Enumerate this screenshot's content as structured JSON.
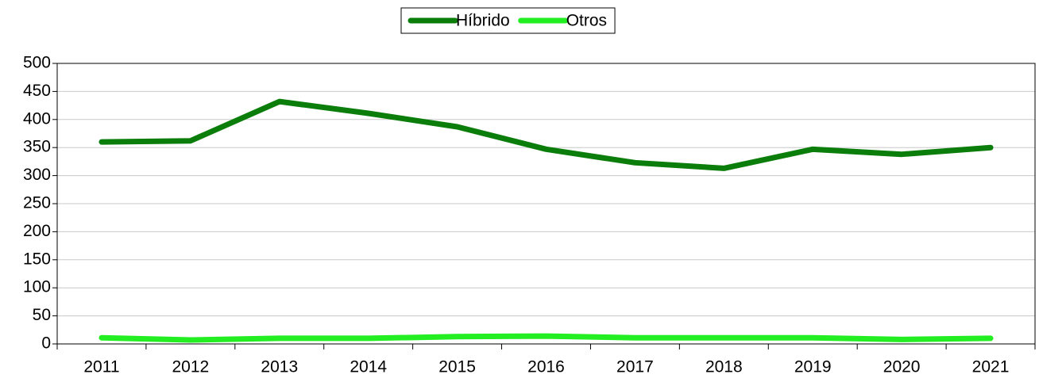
{
  "chart_data": {
    "type": "line",
    "categories": [
      "2011",
      "2012",
      "2013",
      "2014",
      "2015",
      "2016",
      "2017",
      "2018",
      "2019",
      "2020",
      "2021"
    ],
    "series": [
      {
        "name": "Híbrido",
        "color": "#0a7d0a",
        "values": [
          360,
          362,
          432,
          411,
          387,
          347,
          323,
          313,
          347,
          338,
          350
        ]
      },
      {
        "name": "Otros",
        "color": "#22ee22",
        "values": [
          11,
          7,
          10,
          10,
          13,
          14,
          11,
          11,
          11,
          8,
          10
        ]
      }
    ],
    "ylim": [
      0,
      500
    ],
    "yticks": [
      0,
      50,
      100,
      150,
      200,
      250,
      300,
      350,
      400,
      450,
      500
    ],
    "grid": true,
    "legend": "top"
  }
}
